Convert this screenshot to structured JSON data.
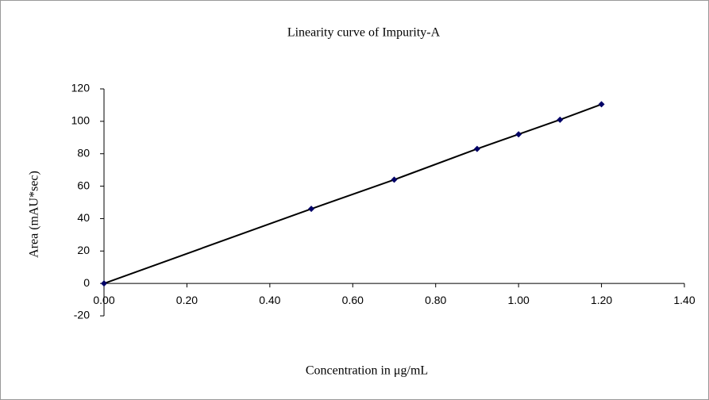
{
  "chart_data": {
    "type": "scatter",
    "title": "Linearity  curve  of  Impurity-A",
    "x_label": "Concentration  in  μg/mL",
    "y_label": "Area (mAU*sec)",
    "series": [
      {
        "x": [
          0,
          0.5,
          0.7,
          0.9,
          1.0,
          1.1,
          1.2
        ],
        "values": [
          0,
          46,
          64,
          83,
          92,
          101,
          110.5
        ],
        "color": "#000066",
        "line_color": "#000000"
      }
    ],
    "xlim": [
      0,
      1.4
    ],
    "xticks": [
      {
        "value": 0,
        "label": "0.00"
      },
      {
        "value": 0.2,
        "label": "0.20"
      },
      {
        "value": 0.4,
        "label": "0.40"
      },
      {
        "value": 0.6,
        "label": "0.60"
      },
      {
        "value": 0.8,
        "label": "0.80"
      },
      {
        "value": 1.0,
        "label": "1.00"
      },
      {
        "value": 1.2,
        "label": "1.20"
      },
      {
        "value": 1.4,
        "label": "1.40"
      }
    ],
    "ylim": [
      -20,
      120
    ],
    "yticks": [
      -20,
      0,
      20,
      40,
      60,
      80,
      100,
      120
    ],
    "grid": false
  }
}
